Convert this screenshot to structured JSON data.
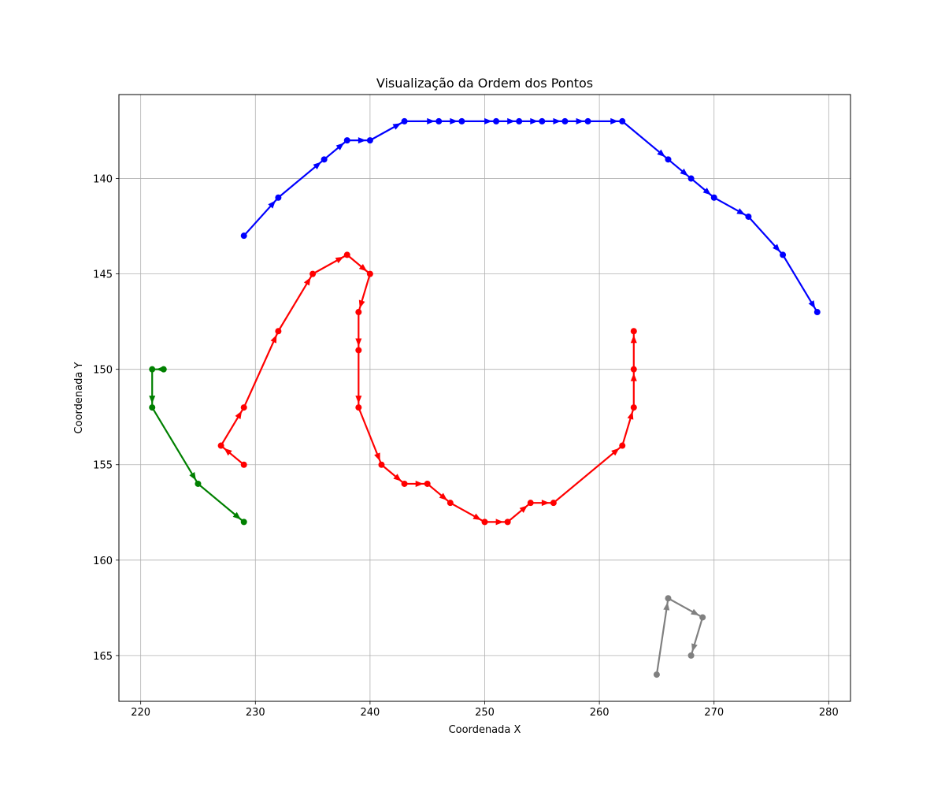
{
  "chart_data": {
    "type": "line",
    "title": "Visualização da Ordem dos Pontos",
    "xlabel": "Coordenada X",
    "ylabel": "Coordenada Y",
    "xlim": [
      218.1,
      281.9
    ],
    "ylim": [
      167.4,
      135.6
    ],
    "y_inverted": true,
    "grid": true,
    "x_ticks": [
      220,
      230,
      240,
      250,
      260,
      270,
      280
    ],
    "y_ticks": [
      140,
      145,
      150,
      155,
      160,
      165
    ],
    "series": [
      {
        "color": "#0000ff",
        "points": [
          [
            229,
            143
          ],
          [
            232,
            141
          ],
          [
            236,
            139
          ],
          [
            238,
            138
          ],
          [
            240,
            138
          ],
          [
            243,
            137
          ],
          [
            246,
            137
          ],
          [
            248,
            137
          ],
          [
            251,
            137
          ],
          [
            253,
            137
          ],
          [
            255,
            137
          ],
          [
            257,
            137
          ],
          [
            259,
            137
          ],
          [
            262,
            137
          ],
          [
            266,
            139
          ],
          [
            268,
            140
          ],
          [
            270,
            141
          ],
          [
            273,
            142
          ],
          [
            276,
            144
          ],
          [
            279,
            147
          ]
        ]
      },
      {
        "color": "#ff0000",
        "points": [
          [
            229,
            155
          ],
          [
            227,
            154
          ],
          [
            229,
            152
          ],
          [
            232,
            148
          ],
          [
            235,
            145
          ],
          [
            238,
            144
          ],
          [
            240,
            145
          ],
          [
            239,
            147
          ],
          [
            239,
            149
          ],
          [
            239,
            152
          ],
          [
            241,
            155
          ],
          [
            243,
            156
          ],
          [
            245,
            156
          ],
          [
            247,
            157
          ],
          [
            250,
            158
          ],
          [
            252,
            158
          ],
          [
            254,
            157
          ],
          [
            256,
            157
          ],
          [
            262,
            154
          ],
          [
            263,
            152
          ],
          [
            263,
            150
          ],
          [
            263,
            148
          ]
        ]
      },
      {
        "color": "#008000",
        "points": [
          [
            222,
            150
          ],
          [
            221,
            150
          ],
          [
            221,
            152
          ],
          [
            225,
            156
          ],
          [
            229,
            158
          ]
        ]
      },
      {
        "color": "#808080",
        "points": [
          [
            265,
            166
          ],
          [
            266,
            162
          ],
          [
            269,
            163
          ],
          [
            268,
            165
          ]
        ]
      }
    ]
  }
}
